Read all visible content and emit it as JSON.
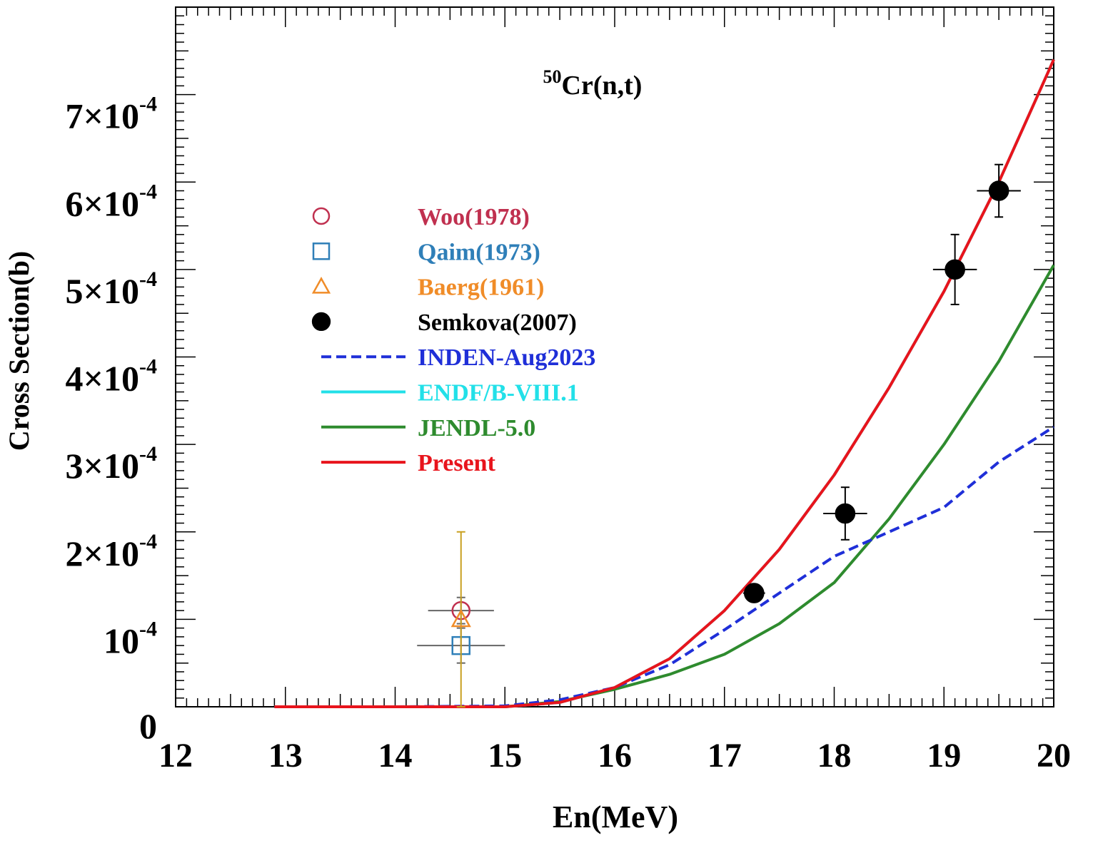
{
  "chart_data": {
    "type": "scatter",
    "title": "Cr(n,t)",
    "title_superscript": "50",
    "xlabel": "En(MeV)",
    "ylabel": "Cross Section(b)",
    "xlim": [
      12,
      20
    ],
    "ylim": [
      0,
      0.0008
    ],
    "grid": false,
    "legend_position": "upper-left",
    "x_ticks": [
      {
        "value": 12,
        "label": "12"
      },
      {
        "value": 13,
        "label": "13"
      },
      {
        "value": 14,
        "label": "14"
      },
      {
        "value": 15,
        "label": "15"
      },
      {
        "value": 16,
        "label": "16"
      },
      {
        "value": 17,
        "label": "17"
      },
      {
        "value": 18,
        "label": "18"
      },
      {
        "value": 19,
        "label": "19"
      },
      {
        "value": 20,
        "label": "20"
      }
    ],
    "y_ticks": [
      {
        "value": 0,
        "mantissa": "0",
        "exponent": ""
      },
      {
        "value": 0.0001,
        "mantissa": "10",
        "exponent": "-4"
      },
      {
        "value": 0.0002,
        "mantissa": "2×10",
        "exponent": "-4"
      },
      {
        "value": 0.0003,
        "mantissa": "3×10",
        "exponent": "-4"
      },
      {
        "value": 0.0004,
        "mantissa": "4×10",
        "exponent": "-4"
      },
      {
        "value": 0.0005,
        "mantissa": "5×10",
        "exponent": "-4"
      },
      {
        "value": 0.0006,
        "mantissa": "6×10",
        "exponent": "-4"
      },
      {
        "value": 0.0007,
        "mantissa": "7×10",
        "exponent": "-4"
      }
    ],
    "experimental": [
      {
        "name": "Woo(1978)",
        "marker": "open-circle",
        "color": "#c0304f",
        "points": [
          {
            "x": 14.6,
            "y": 0.00011,
            "xerr": 0.3,
            "yerr": 1.5e-05
          }
        ]
      },
      {
        "name": "Qaim(1973)",
        "marker": "open-square",
        "color": "#2f7fb8",
        "points": [
          {
            "x": 14.6,
            "y": 7e-05,
            "xerr": 0.4,
            "yerr": 2e-05
          }
        ]
      },
      {
        "name": "Baerg(1961)",
        "marker": "open-triangle",
        "color": "#f08c28",
        "points": [
          {
            "x": 14.6,
            "y": 0.0001,
            "xerr": 0,
            "yerr": 0.0001
          }
        ]
      },
      {
        "name": "Semkova(2007)",
        "marker": "filled-circle",
        "color": "#000000",
        "points": [
          {
            "x": 17.27,
            "y": 0.00013,
            "xerr": 0.1,
            "yerr": 8e-06
          },
          {
            "x": 18.1,
            "y": 0.000221,
            "xerr": 0.2,
            "yerr": 3e-05
          },
          {
            "x": 19.1,
            "y": 0.0005,
            "xerr": 0.2,
            "yerr": 4e-05
          },
          {
            "x": 19.5,
            "y": 0.00059,
            "xerr": 0.2,
            "yerr": 3e-05
          }
        ]
      }
    ],
    "series": [
      {
        "name": "INDEN-Aug2023",
        "style": "dashed",
        "color": "#1f2fd8",
        "x": [
          12.9,
          14.0,
          15.0,
          15.5,
          16.0,
          16.5,
          17.0,
          17.5,
          18.0,
          18.5,
          19.0,
          19.5,
          20.0
        ],
        "y": [
          0,
          0,
          1e-06,
          8e-06,
          2.2e-05,
          4.8e-05,
          8.8e-05,
          0.00013,
          0.000172,
          0.0002,
          0.000228,
          0.00028,
          0.00032
        ]
      },
      {
        "name": "ENDF/B-VIII.1",
        "style": "solid",
        "color": "#22e0e8",
        "x": [
          12.9,
          14.0,
          15.0,
          15.5,
          16.0,
          16.5,
          17.0,
          17.5,
          18.0,
          18.5,
          19.0,
          19.5,
          20.0
        ],
        "y": [
          0,
          0,
          0,
          5e-06,
          2.2e-05,
          5.5e-05,
          0.00011,
          0.00018,
          0.000265,
          0.000365,
          0.000475,
          0.0006,
          0.00074
        ]
      },
      {
        "name": "JENDL-5.0",
        "style": "solid",
        "color": "#2e8b2e",
        "x": [
          12.9,
          14.0,
          15.0,
          15.5,
          16.0,
          16.5,
          17.0,
          17.5,
          18.0,
          18.5,
          19.0,
          19.5,
          20.0
        ],
        "y": [
          0,
          0,
          0,
          6e-06,
          2e-05,
          3.7e-05,
          6e-05,
          9.5e-05,
          0.000142,
          0.000215,
          0.0003,
          0.000395,
          0.000505
        ]
      },
      {
        "name": "Present",
        "style": "solid",
        "color": "#e8141c",
        "x": [
          12.9,
          14.0,
          15.0,
          15.5,
          16.0,
          16.5,
          17.0,
          17.5,
          18.0,
          18.5,
          19.0,
          19.5,
          20.0
        ],
        "y": [
          0,
          0,
          0,
          5e-06,
          2.2e-05,
          5.5e-05,
          0.00011,
          0.00018,
          0.000265,
          0.000365,
          0.000475,
          0.0006,
          0.00074
        ]
      }
    ],
    "legend": [
      {
        "label": "Woo(1978)",
        "marker": "open-circle",
        "color": "#c0304f",
        "text_color": "#c0304f"
      },
      {
        "label": "Qaim(1973)",
        "marker": "open-square",
        "color": "#2f7fb8",
        "text_color": "#2f7fb8"
      },
      {
        "label": "Baerg(1961)",
        "marker": "open-triangle",
        "color": "#f08c28",
        "text_color": "#f08c28"
      },
      {
        "label": "Semkova(2007)",
        "marker": "filled-circle",
        "color": "#000000",
        "text_color": "#000000"
      },
      {
        "label": "INDEN-Aug2023",
        "marker": "dashed-line",
        "color": "#1f2fd8",
        "text_color": "#1f2fd8"
      },
      {
        "label": "ENDF/B-VIII.1",
        "marker": "solid-line",
        "color": "#22e0e8",
        "text_color": "#22e0e8"
      },
      {
        "label": "JENDL-5.0",
        "marker": "solid-line",
        "color": "#2e8b2e",
        "text_color": "#2e8b2e"
      },
      {
        "label": "Present",
        "marker": "solid-line",
        "color": "#e8141c",
        "text_color": "#e8141c"
      }
    ]
  }
}
